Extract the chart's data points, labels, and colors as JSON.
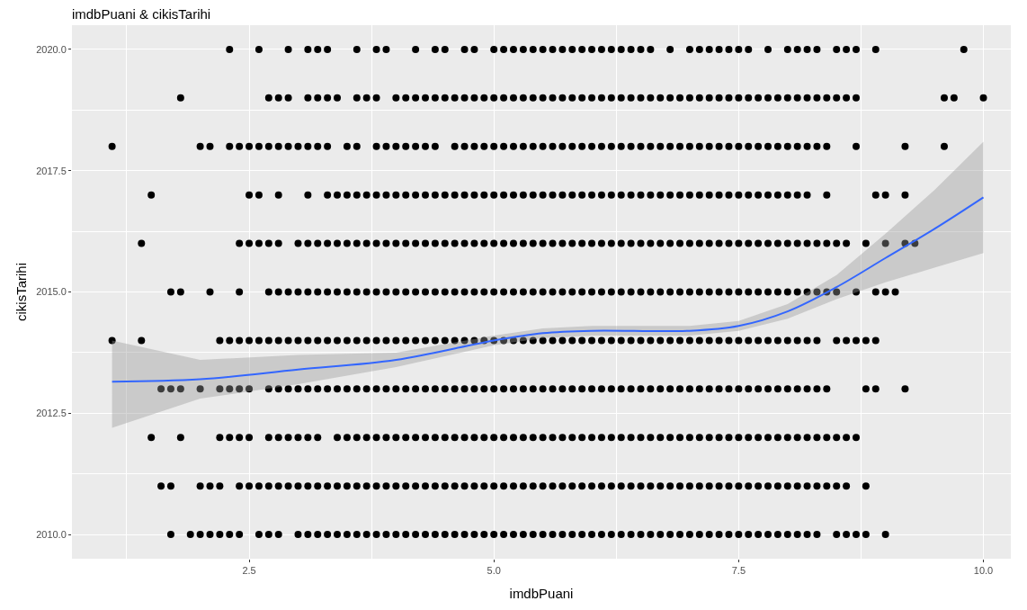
{
  "chart_data": {
    "type": "scatter",
    "title": "imdbPuani & cikisTarihi",
    "xlabel": "imdbPuani",
    "ylabel": "cikisTarihi",
    "xlim": [
      0.69,
      10.28
    ],
    "ylim": [
      2009.5,
      2020.5
    ],
    "xticks": [
      {
        "value": 2.5,
        "label": "2.5"
      },
      {
        "value": 5.0,
        "label": "5.0"
      },
      {
        "value": 7.5,
        "label": "7.5"
      },
      {
        "value": 10.0,
        "label": "10.0"
      }
    ],
    "yticks": [
      {
        "value": 2010,
        "label": "2010.0"
      },
      {
        "value": 2012.5,
        "label": "2012.5"
      },
      {
        "value": 2015,
        "label": "2015.0"
      },
      {
        "value": 2017.5,
        "label": "2017.5"
      },
      {
        "value": 2020,
        "label": "2020.0"
      }
    ],
    "grid": true,
    "marker": "circle",
    "series": [
      {
        "color": "#000000",
        "x": [
          2.3,
          2.6,
          2.9,
          3.1,
          3.2,
          3.3,
          3.6,
          3.8,
          3.9,
          4.2,
          4.4,
          4.5,
          4.7,
          4.8,
          5.0,
          5.1,
          5.2,
          5.3,
          5.4,
          5.5,
          5.6,
          5.7,
          5.8,
          5.9,
          6.0,
          6.1,
          6.2,
          6.3,
          6.4,
          6.5,
          6.6,
          6.8,
          7.0,
          7.1,
          7.2,
          7.3,
          7.4,
          7.5,
          7.6,
          7.8,
          8.0,
          8.1,
          8.2,
          8.3,
          8.5,
          8.6,
          8.7,
          8.9,
          9.8
        ],
        "values": [
          2020,
          2020,
          2020,
          2020,
          2020,
          2020,
          2020,
          2020,
          2020,
          2020,
          2020,
          2020,
          2020,
          2020,
          2020,
          2020,
          2020,
          2020,
          2020,
          2020,
          2020,
          2020,
          2020,
          2020,
          2020,
          2020,
          2020,
          2020,
          2020,
          2020,
          2020,
          2020,
          2020,
          2020,
          2020,
          2020,
          2020,
          2020,
          2020,
          2020,
          2020,
          2020,
          2020,
          2020,
          2020,
          2020,
          2020,
          2020,
          2020
        ]
      },
      {
        "color": "#000000",
        "x": [
          1.8,
          2.7,
          2.8,
          2.9,
          3.1,
          3.2,
          3.3,
          3.4,
          3.6,
          3.7,
          3.8,
          4.0,
          4.1,
          4.2,
          4.3,
          4.4,
          4.5,
          4.6,
          4.7,
          4.8,
          4.9,
          5.0,
          5.1,
          5.2,
          5.3,
          5.4,
          5.5,
          5.6,
          5.7,
          5.8,
          5.9,
          6.0,
          6.1,
          6.2,
          6.3,
          6.4,
          6.5,
          6.6,
          6.7,
          6.8,
          6.9,
          7.0,
          7.1,
          7.2,
          7.3,
          7.4,
          7.5,
          7.6,
          7.7,
          7.8,
          7.9,
          8.0,
          8.1,
          8.2,
          8.3,
          8.4,
          8.5,
          8.6,
          8.7,
          9.6,
          9.7,
          10.0
        ],
        "values": [
          2019,
          2019,
          2019,
          2019,
          2019,
          2019,
          2019,
          2019,
          2019,
          2019,
          2019,
          2019,
          2019,
          2019,
          2019,
          2019,
          2019,
          2019,
          2019,
          2019,
          2019,
          2019,
          2019,
          2019,
          2019,
          2019,
          2019,
          2019,
          2019,
          2019,
          2019,
          2019,
          2019,
          2019,
          2019,
          2019,
          2019,
          2019,
          2019,
          2019,
          2019,
          2019,
          2019,
          2019,
          2019,
          2019,
          2019,
          2019,
          2019,
          2019,
          2019,
          2019,
          2019,
          2019,
          2019,
          2019,
          2019,
          2019,
          2019,
          2019,
          2019,
          2019
        ]
      },
      {
        "color": "#000000",
        "x": [
          1.1,
          2.0,
          2.1,
          2.3,
          2.4,
          2.5,
          2.6,
          2.7,
          2.8,
          2.9,
          3.0,
          3.1,
          3.2,
          3.3,
          3.5,
          3.6,
          3.8,
          3.9,
          4.0,
          4.1,
          4.2,
          4.3,
          4.4,
          4.6,
          4.7,
          4.8,
          4.9,
          5.0,
          5.1,
          5.2,
          5.3,
          5.4,
          5.5,
          5.6,
          5.7,
          5.8,
          5.9,
          6.0,
          6.1,
          6.2,
          6.3,
          6.4,
          6.5,
          6.6,
          6.7,
          6.8,
          6.9,
          7.0,
          7.1,
          7.2,
          7.3,
          7.4,
          7.5,
          7.6,
          7.7,
          7.8,
          7.9,
          8.0,
          8.1,
          8.2,
          8.3,
          8.4,
          8.7,
          9.2,
          9.6
        ],
        "values": [
          2018,
          2018,
          2018,
          2018,
          2018,
          2018,
          2018,
          2018,
          2018,
          2018,
          2018,
          2018,
          2018,
          2018,
          2018,
          2018,
          2018,
          2018,
          2018,
          2018,
          2018,
          2018,
          2018,
          2018,
          2018,
          2018,
          2018,
          2018,
          2018,
          2018,
          2018,
          2018,
          2018,
          2018,
          2018,
          2018,
          2018,
          2018,
          2018,
          2018,
          2018,
          2018,
          2018,
          2018,
          2018,
          2018,
          2018,
          2018,
          2018,
          2018,
          2018,
          2018,
          2018,
          2018,
          2018,
          2018,
          2018,
          2018,
          2018,
          2018,
          2018,
          2018,
          2018,
          2018,
          2018
        ]
      },
      {
        "color": "#000000",
        "x": [
          1.5,
          2.5,
          2.6,
          2.8,
          3.1,
          3.3,
          3.4,
          3.5,
          3.6,
          3.7,
          3.8,
          3.9,
          4.0,
          4.1,
          4.2,
          4.3,
          4.4,
          4.5,
          4.6,
          4.7,
          4.8,
          4.9,
          5.0,
          5.1,
          5.2,
          5.3,
          5.4,
          5.5,
          5.6,
          5.7,
          5.8,
          5.9,
          6.0,
          6.1,
          6.2,
          6.3,
          6.4,
          6.5,
          6.6,
          6.7,
          6.8,
          6.9,
          7.0,
          7.1,
          7.2,
          7.3,
          7.4,
          7.5,
          7.6,
          7.7,
          7.8,
          7.9,
          8.0,
          8.1,
          8.2,
          8.4,
          8.9,
          9.0,
          9.2
        ],
        "values": [
          2017,
          2017,
          2017,
          2017,
          2017,
          2017,
          2017,
          2017,
          2017,
          2017,
          2017,
          2017,
          2017,
          2017,
          2017,
          2017,
          2017,
          2017,
          2017,
          2017,
          2017,
          2017,
          2017,
          2017,
          2017,
          2017,
          2017,
          2017,
          2017,
          2017,
          2017,
          2017,
          2017,
          2017,
          2017,
          2017,
          2017,
          2017,
          2017,
          2017,
          2017,
          2017,
          2017,
          2017,
          2017,
          2017,
          2017,
          2017,
          2017,
          2017,
          2017,
          2017,
          2017,
          2017,
          2017,
          2017,
          2017,
          2017,
          2017
        ]
      },
      {
        "color": "#000000",
        "x": [
          1.4,
          2.4,
          2.5,
          2.6,
          2.7,
          2.8,
          3.0,
          3.1,
          3.2,
          3.3,
          3.4,
          3.5,
          3.6,
          3.7,
          3.8,
          3.9,
          4.0,
          4.1,
          4.2,
          4.3,
          4.4,
          4.5,
          4.6,
          4.7,
          4.8,
          4.9,
          5.0,
          5.1,
          5.2,
          5.3,
          5.4,
          5.5,
          5.6,
          5.7,
          5.8,
          5.9,
          6.0,
          6.1,
          6.2,
          6.3,
          6.4,
          6.5,
          6.6,
          6.7,
          6.8,
          6.9,
          7.0,
          7.1,
          7.2,
          7.3,
          7.4,
          7.5,
          7.6,
          7.7,
          7.8,
          7.9,
          8.0,
          8.1,
          8.2,
          8.3,
          8.4,
          8.5,
          8.6,
          8.8,
          9.0,
          9.2,
          9.3
        ],
        "values": [
          2016,
          2016,
          2016,
          2016,
          2016,
          2016,
          2016,
          2016,
          2016,
          2016,
          2016,
          2016,
          2016,
          2016,
          2016,
          2016,
          2016,
          2016,
          2016,
          2016,
          2016,
          2016,
          2016,
          2016,
          2016,
          2016,
          2016,
          2016,
          2016,
          2016,
          2016,
          2016,
          2016,
          2016,
          2016,
          2016,
          2016,
          2016,
          2016,
          2016,
          2016,
          2016,
          2016,
          2016,
          2016,
          2016,
          2016,
          2016,
          2016,
          2016,
          2016,
          2016,
          2016,
          2016,
          2016,
          2016,
          2016,
          2016,
          2016,
          2016,
          2016,
          2016,
          2016,
          2016,
          2016,
          2016,
          2016
        ]
      },
      {
        "color": "#000000",
        "x": [
          1.7,
          1.8,
          2.1,
          2.4,
          2.7,
          2.8,
          2.9,
          3.0,
          3.1,
          3.2,
          3.3,
          3.4,
          3.5,
          3.6,
          3.7,
          3.8,
          3.9,
          4.0,
          4.1,
          4.2,
          4.3,
          4.4,
          4.5,
          4.6,
          4.7,
          4.8,
          4.9,
          5.0,
          5.1,
          5.2,
          5.3,
          5.4,
          5.5,
          5.6,
          5.7,
          5.8,
          5.9,
          6.0,
          6.1,
          6.2,
          6.3,
          6.4,
          6.5,
          6.6,
          6.7,
          6.8,
          6.9,
          7.0,
          7.1,
          7.2,
          7.3,
          7.4,
          7.5,
          7.6,
          7.7,
          7.8,
          7.9,
          8.0,
          8.1,
          8.2,
          8.3,
          8.4,
          8.5,
          8.7,
          8.9,
          9.0,
          9.1
        ],
        "values": [
          2015,
          2015,
          2015,
          2015,
          2015,
          2015,
          2015,
          2015,
          2015,
          2015,
          2015,
          2015,
          2015,
          2015,
          2015,
          2015,
          2015,
          2015,
          2015,
          2015,
          2015,
          2015,
          2015,
          2015,
          2015,
          2015,
          2015,
          2015,
          2015,
          2015,
          2015,
          2015,
          2015,
          2015,
          2015,
          2015,
          2015,
          2015,
          2015,
          2015,
          2015,
          2015,
          2015,
          2015,
          2015,
          2015,
          2015,
          2015,
          2015,
          2015,
          2015,
          2015,
          2015,
          2015,
          2015,
          2015,
          2015,
          2015,
          2015,
          2015,
          2015,
          2015,
          2015,
          2015,
          2015,
          2015,
          2015
        ]
      },
      {
        "color": "#000000",
        "x": [
          1.1,
          1.4,
          2.2,
          2.3,
          2.4,
          2.5,
          2.6,
          2.7,
          2.8,
          2.9,
          3.0,
          3.1,
          3.2,
          3.3,
          3.4,
          3.5,
          3.6,
          3.7,
          3.8,
          3.9,
          4.0,
          4.1,
          4.2,
          4.3,
          4.4,
          4.5,
          4.6,
          4.7,
          4.8,
          4.9,
          5.0,
          5.1,
          5.2,
          5.3,
          5.4,
          5.5,
          5.6,
          5.7,
          5.8,
          5.9,
          6.0,
          6.1,
          6.2,
          6.3,
          6.4,
          6.5,
          6.6,
          6.7,
          6.8,
          6.9,
          7.0,
          7.1,
          7.2,
          7.3,
          7.4,
          7.5,
          7.6,
          7.7,
          7.8,
          7.9,
          8.0,
          8.1,
          8.2,
          8.3,
          8.5,
          8.6,
          8.7,
          8.8,
          8.9
        ],
        "values": [
          2014,
          2014,
          2014,
          2014,
          2014,
          2014,
          2014,
          2014,
          2014,
          2014,
          2014,
          2014,
          2014,
          2014,
          2014,
          2014,
          2014,
          2014,
          2014,
          2014,
          2014,
          2014,
          2014,
          2014,
          2014,
          2014,
          2014,
          2014,
          2014,
          2014,
          2014,
          2014,
          2014,
          2014,
          2014,
          2014,
          2014,
          2014,
          2014,
          2014,
          2014,
          2014,
          2014,
          2014,
          2014,
          2014,
          2014,
          2014,
          2014,
          2014,
          2014,
          2014,
          2014,
          2014,
          2014,
          2014,
          2014,
          2014,
          2014,
          2014,
          2014,
          2014,
          2014,
          2014,
          2014,
          2014,
          2014,
          2014,
          2014
        ]
      },
      {
        "color": "#000000",
        "x": [
          1.6,
          1.7,
          1.8,
          2.0,
          2.2,
          2.3,
          2.4,
          2.5,
          2.7,
          2.8,
          2.9,
          3.0,
          3.1,
          3.2,
          3.3,
          3.4,
          3.5,
          3.6,
          3.7,
          3.8,
          3.9,
          4.0,
          4.1,
          4.2,
          4.3,
          4.4,
          4.5,
          4.6,
          4.7,
          4.8,
          4.9,
          5.0,
          5.1,
          5.2,
          5.3,
          5.4,
          5.5,
          5.6,
          5.7,
          5.8,
          5.9,
          6.0,
          6.1,
          6.2,
          6.3,
          6.4,
          6.5,
          6.6,
          6.7,
          6.8,
          6.9,
          7.0,
          7.1,
          7.2,
          7.3,
          7.4,
          7.5,
          7.6,
          7.7,
          7.8,
          7.9,
          8.0,
          8.1,
          8.2,
          8.3,
          8.4,
          8.8,
          8.9,
          9.2
        ],
        "values": [
          2013,
          2013,
          2013,
          2013,
          2013,
          2013,
          2013,
          2013,
          2013,
          2013,
          2013,
          2013,
          2013,
          2013,
          2013,
          2013,
          2013,
          2013,
          2013,
          2013,
          2013,
          2013,
          2013,
          2013,
          2013,
          2013,
          2013,
          2013,
          2013,
          2013,
          2013,
          2013,
          2013,
          2013,
          2013,
          2013,
          2013,
          2013,
          2013,
          2013,
          2013,
          2013,
          2013,
          2013,
          2013,
          2013,
          2013,
          2013,
          2013,
          2013,
          2013,
          2013,
          2013,
          2013,
          2013,
          2013,
          2013,
          2013,
          2013,
          2013,
          2013,
          2013,
          2013,
          2013,
          2013,
          2013,
          2013,
          2013,
          2013
        ]
      },
      {
        "color": "#000000",
        "x": [
          1.5,
          1.8,
          2.2,
          2.3,
          2.4,
          2.5,
          2.7,
          2.8,
          2.9,
          3.0,
          3.1,
          3.2,
          3.4,
          3.5,
          3.6,
          3.7,
          3.8,
          3.9,
          4.0,
          4.1,
          4.2,
          4.3,
          4.4,
          4.5,
          4.6,
          4.7,
          4.8,
          4.9,
          5.0,
          5.1,
          5.2,
          5.3,
          5.4,
          5.5,
          5.6,
          5.7,
          5.8,
          5.9,
          6.0,
          6.1,
          6.2,
          6.3,
          6.4,
          6.5,
          6.6,
          6.7,
          6.8,
          6.9,
          7.0,
          7.1,
          7.2,
          7.3,
          7.4,
          7.5,
          7.6,
          7.7,
          7.8,
          7.9,
          8.0,
          8.1,
          8.2,
          8.3,
          8.4,
          8.5,
          8.6,
          8.7
        ],
        "values": [
          2012,
          2012,
          2012,
          2012,
          2012,
          2012,
          2012,
          2012,
          2012,
          2012,
          2012,
          2012,
          2012,
          2012,
          2012,
          2012,
          2012,
          2012,
          2012,
          2012,
          2012,
          2012,
          2012,
          2012,
          2012,
          2012,
          2012,
          2012,
          2012,
          2012,
          2012,
          2012,
          2012,
          2012,
          2012,
          2012,
          2012,
          2012,
          2012,
          2012,
          2012,
          2012,
          2012,
          2012,
          2012,
          2012,
          2012,
          2012,
          2012,
          2012,
          2012,
          2012,
          2012,
          2012,
          2012,
          2012,
          2012,
          2012,
          2012,
          2012,
          2012,
          2012,
          2012,
          2012,
          2012,
          2012
        ]
      },
      {
        "color": "#000000",
        "x": [
          1.6,
          1.7,
          2.0,
          2.1,
          2.2,
          2.4,
          2.5,
          2.6,
          2.7,
          2.8,
          2.9,
          3.0,
          3.1,
          3.2,
          3.3,
          3.4,
          3.5,
          3.6,
          3.7,
          3.8,
          3.9,
          4.0,
          4.1,
          4.2,
          4.3,
          4.4,
          4.5,
          4.6,
          4.7,
          4.8,
          4.9,
          5.0,
          5.1,
          5.2,
          5.3,
          5.4,
          5.5,
          5.6,
          5.7,
          5.8,
          5.9,
          6.0,
          6.1,
          6.2,
          6.3,
          6.4,
          6.5,
          6.6,
          6.7,
          6.8,
          6.9,
          7.0,
          7.1,
          7.2,
          7.3,
          7.4,
          7.5,
          7.6,
          7.7,
          7.8,
          7.9,
          8.0,
          8.1,
          8.2,
          8.3,
          8.4,
          8.5,
          8.6,
          8.8
        ],
        "values": [
          2011,
          2011,
          2011,
          2011,
          2011,
          2011,
          2011,
          2011,
          2011,
          2011,
          2011,
          2011,
          2011,
          2011,
          2011,
          2011,
          2011,
          2011,
          2011,
          2011,
          2011,
          2011,
          2011,
          2011,
          2011,
          2011,
          2011,
          2011,
          2011,
          2011,
          2011,
          2011,
          2011,
          2011,
          2011,
          2011,
          2011,
          2011,
          2011,
          2011,
          2011,
          2011,
          2011,
          2011,
          2011,
          2011,
          2011,
          2011,
          2011,
          2011,
          2011,
          2011,
          2011,
          2011,
          2011,
          2011,
          2011,
          2011,
          2011,
          2011,
          2011,
          2011,
          2011,
          2011,
          2011,
          2011,
          2011,
          2011,
          2011
        ]
      },
      {
        "color": "#000000",
        "x": [
          1.7,
          1.9,
          2.0,
          2.1,
          2.2,
          2.3,
          2.4,
          2.6,
          2.7,
          2.8,
          3.0,
          3.1,
          3.2,
          3.3,
          3.4,
          3.5,
          3.6,
          3.7,
          3.8,
          3.9,
          4.0,
          4.1,
          4.2,
          4.3,
          4.4,
          4.5,
          4.6,
          4.7,
          4.8,
          4.9,
          5.0,
          5.1,
          5.2,
          5.3,
          5.4,
          5.5,
          5.6,
          5.7,
          5.8,
          5.9,
          6.0,
          6.1,
          6.2,
          6.3,
          6.4,
          6.5,
          6.6,
          6.7,
          6.8,
          6.9,
          7.0,
          7.1,
          7.2,
          7.3,
          7.4,
          7.5,
          7.6,
          7.7,
          7.8,
          7.9,
          8.0,
          8.1,
          8.2,
          8.3,
          8.5,
          8.6,
          8.7,
          8.8,
          9.0
        ],
        "values": [
          2010,
          2010,
          2010,
          2010,
          2010,
          2010,
          2010,
          2010,
          2010,
          2010,
          2010,
          2010,
          2010,
          2010,
          2010,
          2010,
          2010,
          2010,
          2010,
          2010,
          2010,
          2010,
          2010,
          2010,
          2010,
          2010,
          2010,
          2010,
          2010,
          2010,
          2010,
          2010,
          2010,
          2010,
          2010,
          2010,
          2010,
          2010,
          2010,
          2010,
          2010,
          2010,
          2010,
          2010,
          2010,
          2010,
          2010,
          2010,
          2010,
          2010,
          2010,
          2010,
          2010,
          2010,
          2010,
          2010,
          2010,
          2010,
          2010,
          2010,
          2010,
          2010,
          2010,
          2010,
          2010,
          2010,
          2010,
          2010,
          2010
        ]
      },
      {
        "type": "line",
        "marker": "none",
        "color": "#3366ff",
        "x": [
          1.1,
          2.0,
          3.0,
          4.0,
          5.0,
          5.5,
          6.0,
          7.0,
          7.5,
          8.0,
          8.5,
          9.0,
          9.5,
          10.0
        ],
        "values": [
          2013.15,
          2013.2,
          2013.4,
          2013.6,
          2014.0,
          2014.15,
          2014.2,
          2014.2,
          2014.3,
          2014.6,
          2015.1,
          2015.7,
          2016.3,
          2016.95
        ],
        "lower": [
          2012.2,
          2012.8,
          2013.1,
          2013.45,
          2013.9,
          2014.05,
          2014.1,
          2014.1,
          2014.2,
          2014.45,
          2014.85,
          2015.2,
          2015.5,
          2015.8
        ],
        "upper": [
          2014.0,
          2013.6,
          2013.7,
          2013.75,
          2014.1,
          2014.25,
          2014.3,
          2014.3,
          2014.4,
          2014.75,
          2015.35,
          2016.2,
          2017.1,
          2018.1
        ]
      }
    ]
  }
}
